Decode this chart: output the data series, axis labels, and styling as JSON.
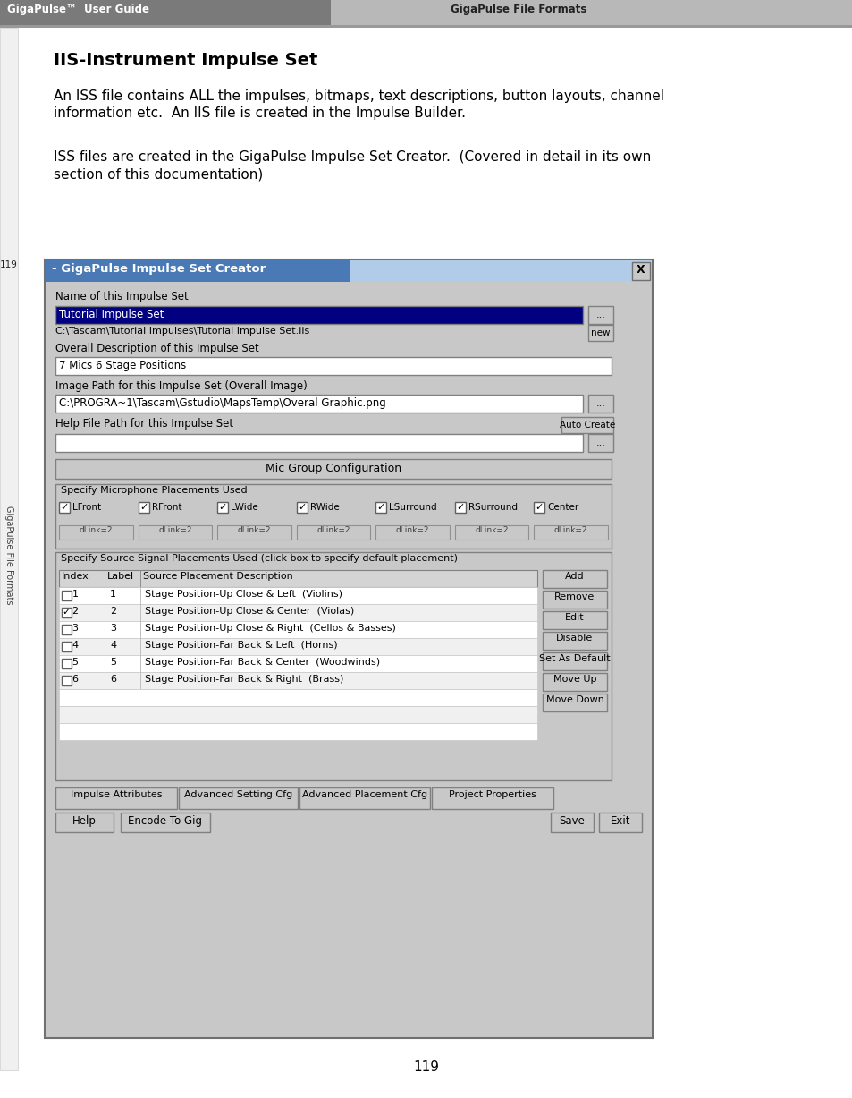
{
  "header_left_text": "GigaPulse™  User Guide",
  "header_right_text": "GigaPulse File Formats",
  "header_left_bg": "#7a7a7a",
  "header_right_bg": "#b8b8b8",
  "page_bg": "#ffffff",
  "section_title": "IIS-Instrument Impulse Set",
  "para1": "An ISS file contains ALL the impulses, bitmaps, text descriptions, button layouts, channel\ninformation etc.  An IIS file is created in the Impulse Builder.",
  "para2": "ISS files are created in the GigaPulse Impulse Set Creator.  (Covered in detail in its own\nsection of this documentation)",
  "page_number": "119",
  "sidebar_text": "GigaPulse File Formats",
  "dialog_title": "- GigaPulse Impulse Set Creator",
  "dialog_bg": "#c8c8c8",
  "dialog_title_bg_left": "#4a7ab5",
  "dialog_title_bg_right": "#b0cce8",
  "name_label": "Name of this Impulse Set",
  "name_value": "Tutorial Impulse Set",
  "name_value_bg": "#000080",
  "path_text": "C:\\Tascam\\Tutorial Impulses\\Tutorial Impulse Set.iis",
  "desc_label": "Overall Description of this Impulse Set",
  "desc_value": "7 Mics 6 Stage Positions",
  "image_label": "Image Path for this Impulse Set (Overall Image)",
  "image_value": "C:\\PROGRA~1\\Tascam\\Gstudio\\MapsTemp\\Overal Graphic.png",
  "help_label": "Help File Path for this Impulse Set",
  "mic_group_btn": "Mic Group Configuration",
  "mic_label": "Specify Microphone Placements Used",
  "mic_checks": [
    "LFront",
    "RFront",
    "LWide",
    "RWide",
    "LSurround",
    "RSurround",
    "Center"
  ],
  "mic_checked": [
    true,
    true,
    true,
    true,
    true,
    true,
    true
  ],
  "dlink_label": "dLink=2",
  "source_label": "Specify Source Signal Placements Used (click box to specify default placement)",
  "table_headers": [
    "Index",
    "Label",
    "Source Placement Description"
  ],
  "table_rows": [
    [
      false,
      "1",
      "1",
      "Stage Position-Up Close & Left  (Violins)"
    ],
    [
      true,
      "2",
      "2",
      "Stage Position-Up Close & Center  (Violas)"
    ],
    [
      false,
      "3",
      "3",
      "Stage Position-Up Close & Right  (Cellos & Basses)"
    ],
    [
      false,
      "4",
      "4",
      "Stage Position-Far Back & Left  (Horns)"
    ],
    [
      false,
      "5",
      "5",
      "Stage Position-Far Back & Center  (Woodwinds)"
    ],
    [
      false,
      "6",
      "6",
      "Stage Position-Far Back & Right  (Brass)"
    ]
  ],
  "right_buttons": [
    "Add",
    "Remove",
    "Edit",
    "Disable",
    "Set As Default",
    "Move Up",
    "Move Down"
  ],
  "bottom_tabs": [
    "Impulse Attributes",
    "Advanced Setting Cfg",
    "Advanced Placement Cfg",
    "Project Properties"
  ],
  "bottom_buttons_left": [
    "Help",
    "Encode To Gig"
  ],
  "bottom_buttons_right": [
    "Save",
    "Exit"
  ],
  "btn_auto_create": "Auto Create",
  "btn_new": "new",
  "btn_ellipsis": "..."
}
